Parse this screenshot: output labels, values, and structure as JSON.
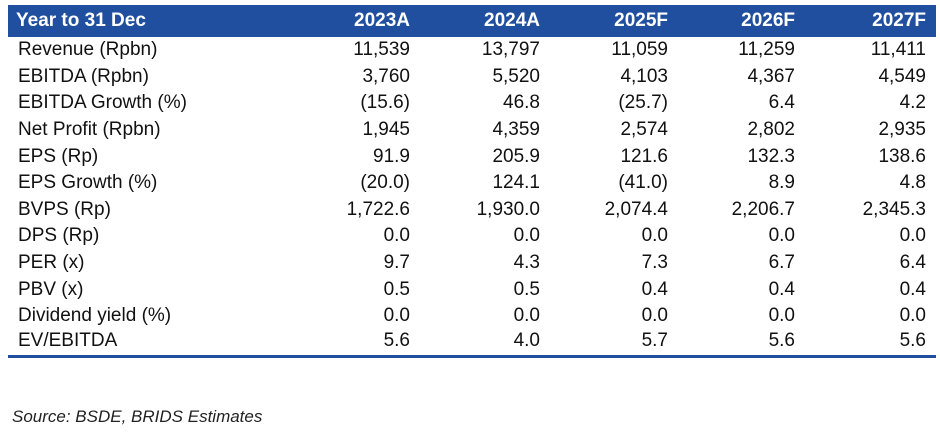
{
  "table": {
    "header": [
      "Year to 31 Dec",
      "2023A",
      "2024A",
      "2025F",
      "2026F",
      "2027F"
    ],
    "rows": [
      [
        "Revenue (Rpbn)",
        "11,539",
        "13,797",
        "11,059",
        "11,259",
        "11,411"
      ],
      [
        "EBITDA (Rpbn)",
        "3,760",
        "5,520",
        "4,103",
        "4,367",
        "4,549"
      ],
      [
        "EBITDA Growth (%)",
        "(15.6)",
        "46.8",
        "(25.7)",
        "6.4",
        "4.2"
      ],
      [
        "Net Profit (Rpbn)",
        "1,945",
        "4,359",
        "2,574",
        "2,802",
        "2,935"
      ],
      [
        "EPS (Rp)",
        "91.9",
        "205.9",
        "121.6",
        "132.3",
        "138.6"
      ],
      [
        "EPS Growth (%)",
        "(20.0)",
        "124.1",
        "(41.0)",
        "8.9",
        "4.8"
      ],
      [
        "BVPS (Rp)",
        "1,722.6",
        "1,930.0",
        "2,074.4",
        "2,206.7",
        "2,345.3"
      ],
      [
        "DPS (Rp)",
        "0.0",
        "0.0",
        "0.0",
        "0.0",
        "0.0"
      ],
      [
        "PER (x)",
        "9.7",
        "4.3",
        "7.3",
        "6.7",
        "6.4"
      ],
      [
        "PBV (x)",
        "0.5",
        "0.5",
        "0.4",
        "0.4",
        "0.4"
      ],
      [
        "Dividend yield (%)",
        "0.0",
        "0.0",
        "0.0",
        "0.0",
        "0.0"
      ],
      [
        "EV/EBITDA",
        "5.6",
        "4.0",
        "5.7",
        "5.6",
        "5.6"
      ]
    ]
  },
  "source": "Source: BSDE, BRIDS Estimates"
}
